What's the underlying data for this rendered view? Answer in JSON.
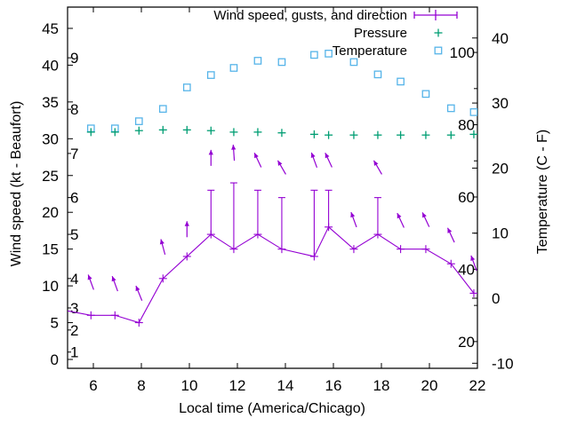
{
  "figure": {
    "background": "#ffffff",
    "xlabel": "Local time (America/Chicago)",
    "ylabel_left": "Wind speed (kt - Beaufort)",
    "ylabel_right": "Temperature (C - F)",
    "legend": [
      {
        "label": "Wind speed, gusts, and direction",
        "glyph": "errorbar",
        "color": "#9400d3"
      },
      {
        "label": "Pressure",
        "glyph": "plus",
        "color": "#009e73"
      },
      {
        "label": "Temperature",
        "glyph": "square",
        "color": "#56b4e9"
      }
    ]
  },
  "chart_data": {
    "type": "line",
    "title": "",
    "xlabel": "Local time (America/Chicago)",
    "x_ticks": [
      6,
      8,
      10,
      12,
      14,
      16,
      18,
      20,
      22
    ],
    "x_range": [
      4.93,
      22
    ],
    "grid": false,
    "y_left": {
      "label": "Wind speed (kt - Beaufort)",
      "ticks": [
        0,
        5,
        10,
        15,
        20,
        25,
        30,
        35,
        40,
        45
      ],
      "range": [
        -1.2,
        47.9
      ]
    },
    "beaufort_scale": [
      {
        "bft": "1",
        "kt": 1
      },
      {
        "bft": "2",
        "kt": 4
      },
      {
        "bft": "3",
        "kt": 7
      },
      {
        "bft": "4",
        "kt": 11
      },
      {
        "bft": "5",
        "kt": 17
      },
      {
        "bft": "6",
        "kt": 22
      },
      {
        "bft": "7",
        "kt": 28
      },
      {
        "bft": "8",
        "kt": 34
      },
      {
        "bft": "9",
        "kt": 41
      }
    ],
    "y_right": {
      "label": "Temperature (C - F)",
      "ticks_c": [
        -10,
        0,
        10,
        20,
        30,
        40
      ],
      "range_c": [
        -10.8,
        44.7
      ]
    },
    "fahrenheit_scale": {
      "labels": [
        20,
        40,
        60,
        80,
        100
      ],
      "minor_tick_step": 10
    },
    "series": {
      "wind": {
        "name": "Wind speed, gusts, and direction",
        "color": "#9400d3",
        "lead_point": {
          "t": 4.93,
          "kt": 6.6
        },
        "points": [
          {
            "t": 5.9,
            "kt": 6,
            "gust": null,
            "dir_y_kt": 10.5,
            "dir_angle": -20
          },
          {
            "t": 6.9,
            "kt": 6,
            "gust": null,
            "dir_y_kt": 10.3,
            "dir_angle": -20
          },
          {
            "t": 7.9,
            "kt": 5,
            "gust": null,
            "dir_y_kt": 9.0,
            "dir_angle": -22
          },
          {
            "t": 8.9,
            "kt": 11,
            "gust": null,
            "dir_y_kt": 15.3,
            "dir_angle": -15
          },
          {
            "t": 9.9,
            "kt": 14,
            "gust": null,
            "dir_y_kt": 17.7,
            "dir_angle": 0
          },
          {
            "t": 10.9,
            "kt": 17,
            "gust": 23,
            "dir_y_kt": 27.4,
            "dir_angle": 0
          },
          {
            "t": 11.85,
            "kt": 15,
            "gust": 24,
            "dir_y_kt": 28.1,
            "dir_angle": -4
          },
          {
            "t": 12.85,
            "kt": 17,
            "gust": 23,
            "dir_y_kt": 27.1,
            "dir_angle": -25
          },
          {
            "t": 13.85,
            "kt": 15,
            "gust": 22,
            "dir_y_kt": 26.1,
            "dir_angle": -30
          },
          {
            "t": 15.2,
            "kt": 14,
            "gust": 23,
            "dir_y_kt": 27.1,
            "dir_angle": -20
          },
          {
            "t": 15.8,
            "kt": 18,
            "gust": 23,
            "dir_y_kt": 27.1,
            "dir_angle": -25
          },
          {
            "t": 16.85,
            "kt": 15,
            "gust": null,
            "dir_y_kt": 19.0,
            "dir_angle": -20
          },
          {
            "t": 17.85,
            "kt": 17,
            "gust": 22,
            "dir_y_kt": 26.1,
            "dir_angle": -30
          },
          {
            "t": 18.8,
            "kt": 15,
            "gust": null,
            "dir_y_kt": 18.9,
            "dir_angle": -25
          },
          {
            "t": 19.85,
            "kt": 15,
            "gust": null,
            "dir_y_kt": 19.0,
            "dir_angle": -25
          },
          {
            "t": 20.9,
            "kt": 13,
            "gust": null,
            "dir_y_kt": 16.9,
            "dir_angle": -25
          },
          {
            "t": 21.85,
            "kt": 9,
            "gust": null,
            "dir_y_kt": 13.1,
            "dir_angle": -20
          }
        ]
      },
      "pressure": {
        "name": "Pressure",
        "color": "#009e73",
        "points": [
          {
            "t": 5.9,
            "v": 30.9
          },
          {
            "t": 6.9,
            "v": 30.9
          },
          {
            "t": 7.9,
            "v": 31.1
          },
          {
            "t": 8.9,
            "v": 31.2
          },
          {
            "t": 9.9,
            "v": 31.2
          },
          {
            "t": 10.9,
            "v": 31.1
          },
          {
            "t": 11.85,
            "v": 30.9
          },
          {
            "t": 12.85,
            "v": 30.9
          },
          {
            "t": 13.85,
            "v": 30.8
          },
          {
            "t": 15.2,
            "v": 30.6
          },
          {
            "t": 15.8,
            "v": 30.5
          },
          {
            "t": 16.85,
            "v": 30.5
          },
          {
            "t": 17.85,
            "v": 30.5
          },
          {
            "t": 18.8,
            "v": 30.5
          },
          {
            "t": 19.85,
            "v": 30.5
          },
          {
            "t": 20.9,
            "v": 30.5
          },
          {
            "t": 21.85,
            "v": 30.6
          }
        ]
      },
      "temperature": {
        "name": "Temperature",
        "color": "#56b4e9",
        "points": [
          {
            "t": 5.9,
            "c": 26.1
          },
          {
            "t": 6.9,
            "c": 26.1
          },
          {
            "t": 7.9,
            "c": 27.2
          },
          {
            "t": 8.9,
            "c": 29.1
          },
          {
            "t": 9.9,
            "c": 32.4
          },
          {
            "t": 10.9,
            "c": 34.3
          },
          {
            "t": 11.85,
            "c": 35.4
          },
          {
            "t": 12.85,
            "c": 36.5
          },
          {
            "t": 13.85,
            "c": 36.3
          },
          {
            "t": 15.2,
            "c": 37.4
          },
          {
            "t": 15.8,
            "c": 37.6
          },
          {
            "t": 16.85,
            "c": 36.3
          },
          {
            "t": 17.85,
            "c": 34.4
          },
          {
            "t": 18.8,
            "c": 33.3
          },
          {
            "t": 19.85,
            "c": 31.4
          },
          {
            "t": 20.9,
            "c": 29.2
          },
          {
            "t": 21.85,
            "c": 28.6
          }
        ]
      }
    }
  }
}
